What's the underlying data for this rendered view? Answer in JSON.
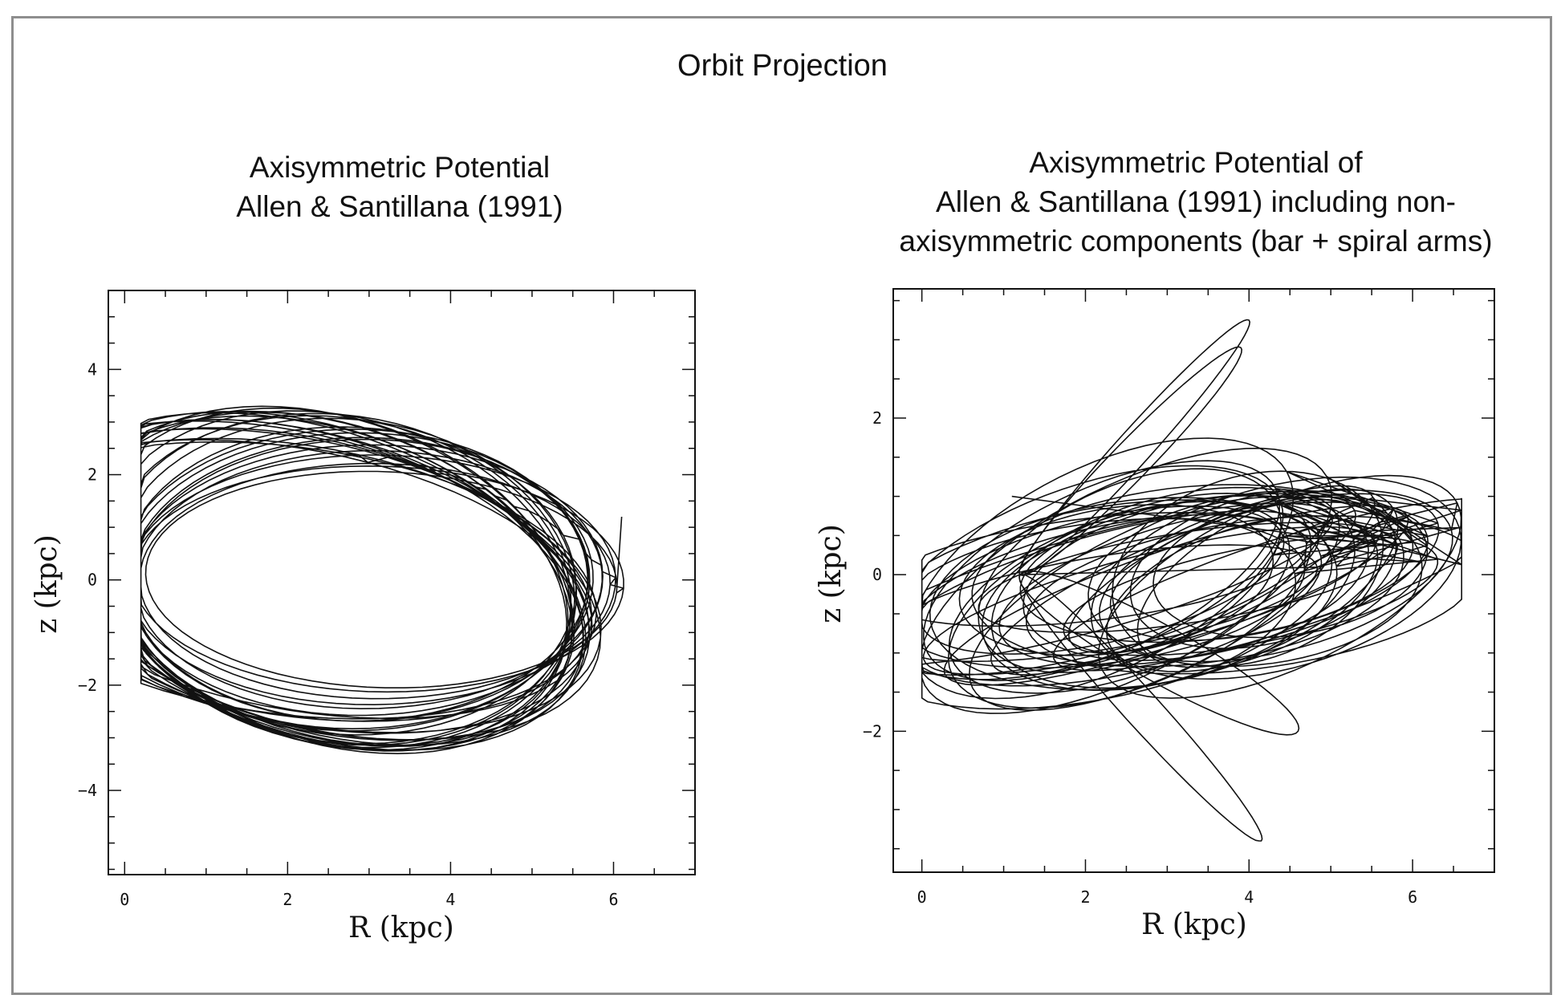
{
  "figure": {
    "title": "Orbit Projection"
  },
  "chart_data": [
    {
      "type": "line",
      "title_lines": [
        "Axisymmetric Potential",
        "Allen & Santillana (1991)"
      ],
      "xlabel": "R (kpc)",
      "ylabel": "z (kpc)",
      "xlim": [
        -0.2,
        7.0
      ],
      "ylim": [
        -5.6,
        5.5
      ],
      "xticks": [
        0,
        2,
        4,
        6
      ],
      "yticks": [
        -4,
        -2,
        0,
        2,
        4
      ],
      "x_minor_step": 0.5,
      "y_minor_step": 0.5,
      "grid": false,
      "orbit": {
        "loops": 30,
        "z_amplitude": [
          2.2,
          5.0
        ],
        "R_range": [
          0.2,
          6.7
        ],
        "tilt_rotation_deg": [
          -5,
          74
        ],
        "trace_start": [
          6.1,
          1.2
        ]
      }
    },
    {
      "type": "line",
      "title_lines": [
        "Axisymmetric Potential of",
        "Allen & Santillana (1991) including non-",
        "axisymmetric components (bar + spiral arms)"
      ],
      "xlabel": "R (kpc)",
      "ylabel": "z (kpc)",
      "xlim": [
        -0.35,
        7.0
      ],
      "ylim": [
        -3.8,
        3.65
      ],
      "xticks": [
        0,
        2,
        4,
        6
      ],
      "yticks": [
        -2,
        0,
        2
      ],
      "x_minor_step": 0.5,
      "y_minor_step": 0.5,
      "grid": false,
      "orbit": {
        "loops": 42,
        "z_range": [
          -3.4,
          3.3
        ],
        "R_range": [
          0.0,
          6.6
        ],
        "mean_tilt_deg": 18,
        "trace_start": [
          1.1,
          1.0
        ]
      }
    }
  ]
}
